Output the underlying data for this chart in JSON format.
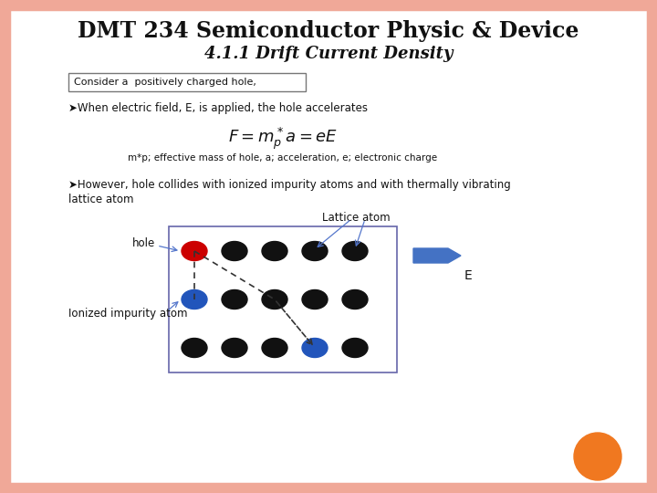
{
  "title": "DMT 234 Semiconductor Physic & Device",
  "subtitle": "4.1.1 Drift Current Density",
  "background_color": "#ffffff",
  "border_color": "#f0a898",
  "slide_bg": "#f0a898",
  "title_fontsize": 17,
  "subtitle_fontsize": 13,
  "box_text": "Consider a  positively charged hole,",
  "bullet1": "➤When electric field, E, is applied, the hole accelerates",
  "formula": "$F = m^*_p a = eE$",
  "formula_note": "m*p; effective mass of hole, a; acceleration, e; electronic charge",
  "bullet2_line1": "➤However, hole collides with ionized impurity atoms and with thermally vibrating",
  "bullet2_line2": "lattice atom",
  "lattice_label": "Lattice atom",
  "hole_label": "hole",
  "impurity_label": "Ionized impurity atom",
  "E_label": "E",
  "orange_circle_color": "#f07820",
  "blue_arrow_color": "#4472c4",
  "lattice_atom_color": "#111111",
  "hole_color": "#cc0000",
  "impurity_color": "#2255bb",
  "dashed_color": "#333333",
  "grid_border_color": "#6666aa"
}
